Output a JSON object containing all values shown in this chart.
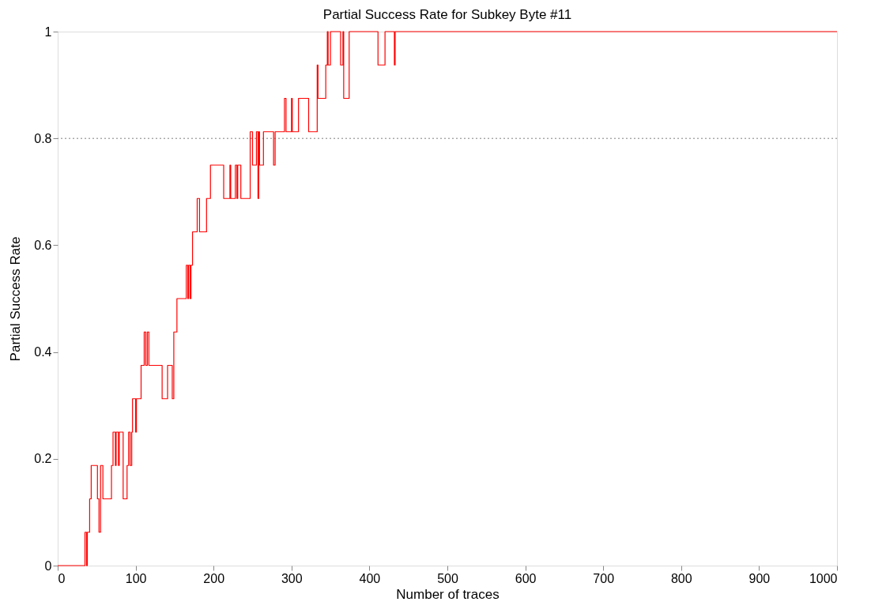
{
  "chart_data": {
    "type": "step",
    "title": "Partial Success Rate for Subkey Byte #11",
    "xlabel": "Number of traces",
    "ylabel": "Partial Success Rate",
    "x": [
      0,
      35,
      37,
      38,
      41,
      43,
      51,
      53,
      55,
      58,
      69,
      71,
      74,
      75,
      78,
      79,
      84,
      89,
      91,
      93,
      95,
      96,
      100,
      101,
      107,
      111,
      113,
      115,
      117,
      134,
      141,
      147,
      149,
      153,
      165,
      167,
      168,
      170,
      171,
      173,
      179,
      182,
      191,
      196,
      213,
      221,
      222,
      228,
      230,
      231,
      235,
      247,
      250,
      255,
      257,
      258,
      259,
      264,
      277,
      279,
      291,
      293,
      300,
      301,
      309,
      322,
      333,
      334,
      344,
      346,
      347,
      350,
      363,
      366,
      367,
      374,
      411,
      420,
      432,
      433,
      1000
    ],
    "series": [
      {
        "color": "#ff0000",
        "values": [
          0,
          0.0625,
          0,
          0.0625,
          0.125,
          0.1875,
          0.125,
          0.0625,
          0.1875,
          0.125,
          0.1875,
          0.25,
          0.1875,
          0.25,
          0.1875,
          0.25,
          0.125,
          0.1875,
          0.25,
          0.1875,
          0.25,
          0.3125,
          0.25,
          0.3125,
          0.375,
          0.4375,
          0.375,
          0.4375,
          0.375,
          0.3125,
          0.375,
          0.3125,
          0.4375,
          0.5,
          0.5625,
          0.5,
          0.5625,
          0.5,
          0.5625,
          0.625,
          0.6875,
          0.625,
          0.6875,
          0.75,
          0.6875,
          0.75,
          0.6875,
          0.75,
          0.6875,
          0.75,
          0.6875,
          0.8125,
          0.75,
          0.8125,
          0.6875,
          0.8125,
          0.75,
          0.8125,
          0.75,
          0.8125,
          0.875,
          0.8125,
          0.875,
          0.8125,
          0.875,
          0.8125,
          0.9375,
          0.875,
          0.9375,
          1,
          0.9375,
          1,
          0.9375,
          1,
          0.875,
          1,
          0.9375,
          1,
          0.9375,
          1,
          1
        ]
      }
    ],
    "xlim": [
      0,
      1000
    ],
    "xticks": [
      0,
      100,
      200,
      300,
      400,
      500,
      600,
      700,
      800,
      900,
      1000
    ],
    "ylim": [
      0,
      1
    ],
    "yticks": [
      0,
      0.2,
      0.4,
      0.6,
      0.8,
      1
    ],
    "ref_lines": [
      {
        "axis": "y",
        "value": 0.8,
        "color": "#808080",
        "line_style": "dotted"
      }
    ],
    "grid": false
  }
}
